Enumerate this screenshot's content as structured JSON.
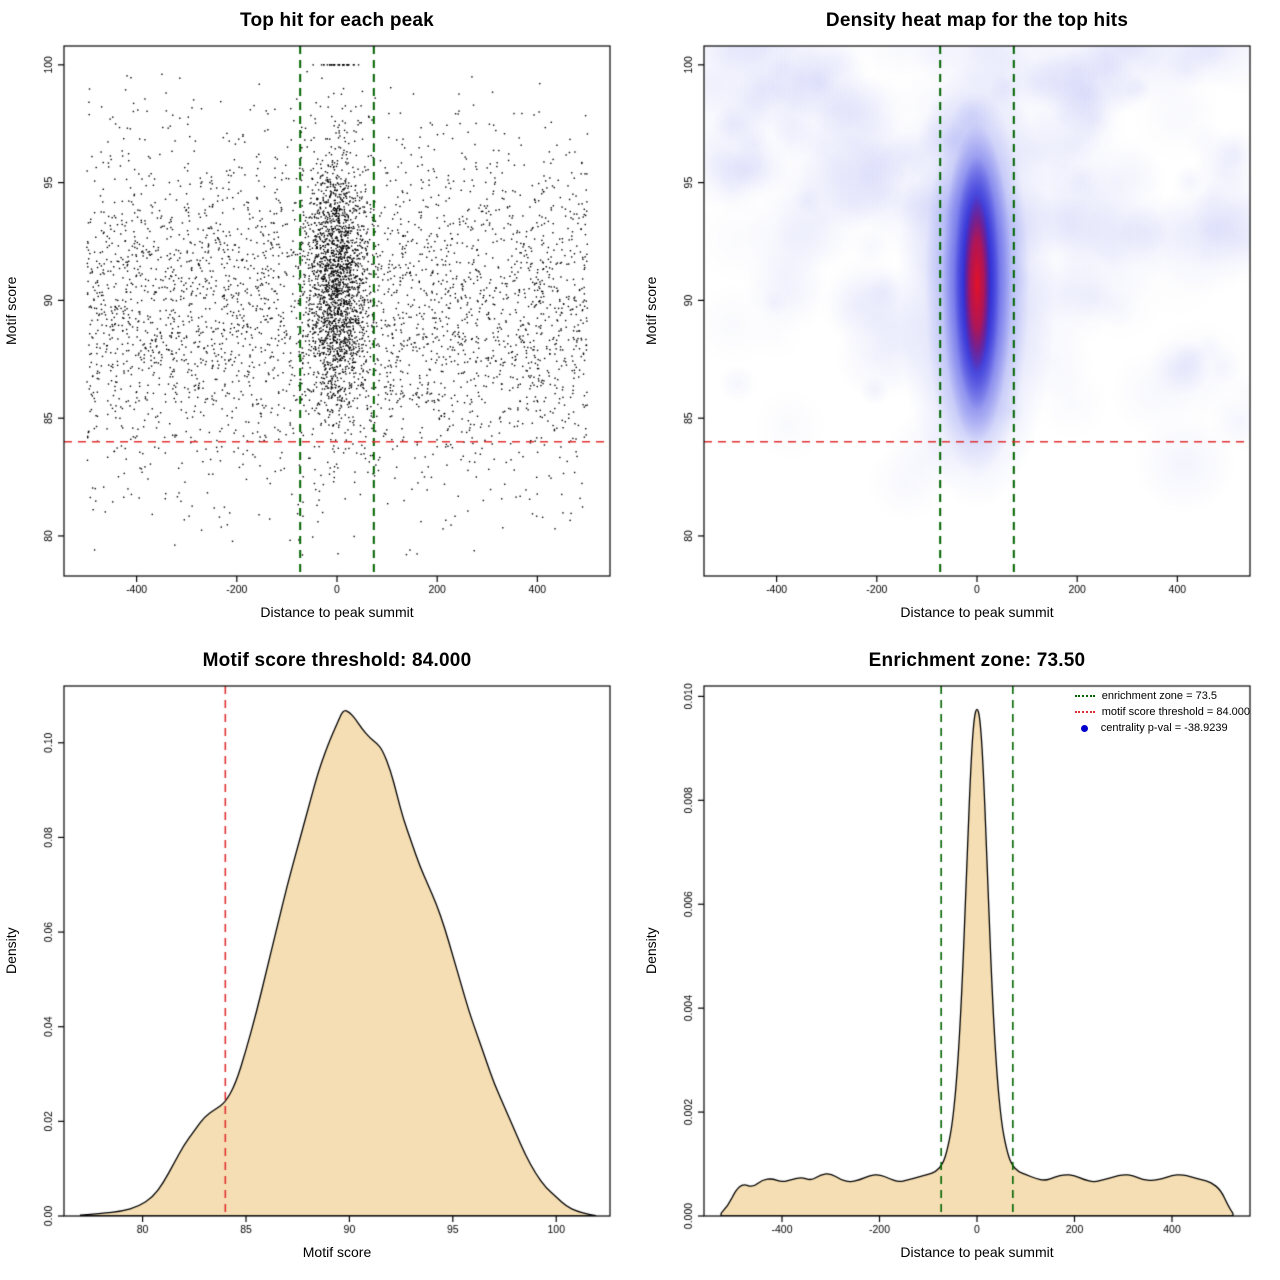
{
  "page": {
    "background": "#ffffff"
  },
  "chart_data": [
    {
      "type": "scatter",
      "title": "Top hit for each peak",
      "xlabel": "Distance to peak summit",
      "ylabel": "Motif score",
      "xlim": [
        -545,
        545
      ],
      "ylim": [
        78.3,
        100.8
      ],
      "xticks": {
        "values": [
          -400,
          -200,
          0,
          200,
          400
        ],
        "labels": [
          "-400",
          "-200",
          "0",
          "200",
          "400"
        ]
      },
      "yticks": {
        "values": [
          80,
          85,
          90,
          95,
          100
        ],
        "labels": [
          "80",
          "85",
          "90",
          "95",
          "100"
        ]
      },
      "points": {
        "seed": 42,
        "color": "#000000",
        "size": 1.4,
        "n_background": 3600,
        "background_x_range": [
          -500,
          500
        ],
        "background_y_mean": 89.7,
        "background_y_sd": 3.8,
        "n_cluster": 1800,
        "cluster_x_mean": 0,
        "cluster_x_sd": 30,
        "cluster_y_mean": 90.8,
        "cluster_y_sd": 2.8,
        "n_top": 30,
        "top_y": 100,
        "top_x_sd": 22,
        "y_min": 78.8,
        "y_max": 100
      },
      "vlines": [
        {
          "x": -73.5,
          "color": "#006400",
          "width": 2,
          "style": "dashed"
        },
        {
          "x": 73.5,
          "color": "#006400",
          "width": 2,
          "style": "dashed"
        }
      ],
      "hlines": [
        {
          "y": 84,
          "color": "#e03131",
          "width": 1.6,
          "style": "dashed"
        }
      ]
    },
    {
      "type": "heatmap",
      "title": "Density heat map for the top hits",
      "xlabel": "Distance to peak summit",
      "ylabel": "Motif score",
      "xlim": [
        -545,
        545
      ],
      "ylim": [
        78.3,
        100.8
      ],
      "xticks": {
        "values": [
          -400,
          -200,
          0,
          200,
          400
        ],
        "labels": [
          "-400",
          "-200",
          "0",
          "200",
          "400"
        ]
      },
      "yticks": {
        "values": [
          80,
          85,
          90,
          95,
          100
        ],
        "labels": [
          "80",
          "85",
          "90",
          "95",
          "100"
        ]
      },
      "noise": {
        "seed": 7,
        "count": 340,
        "r_min": 14,
        "r_max": 52,
        "rgb": "95,105,235",
        "alpha_min": 0.02,
        "alpha_max": 0.075,
        "y_low": 82,
        "y_span": 17
      },
      "hotspot": {
        "x": 0,
        "y": 90.7,
        "layers": [
          {
            "hw": 160,
            "hh": 9.5,
            "rgb": "135,145,240",
            "a": 0.34
          },
          {
            "hw": 105,
            "hh": 8.2,
            "rgb": "90,100,235",
            "a": 0.5
          },
          {
            "hw": 70,
            "hh": 6.8,
            "rgb": "45,45,220",
            "a": 0.8
          },
          {
            "hw": 46,
            "hh": 5.4,
            "rgb": "25,20,205",
            "a": 0.95
          },
          {
            "hw": 27,
            "hh": 3.8,
            "rgb": "228,18,40",
            "a": 1
          }
        ]
      },
      "vlines": [
        {
          "x": -73.5,
          "color": "#006400",
          "width": 2,
          "style": "dashed"
        },
        {
          "x": 73.5,
          "color": "#006400",
          "width": 2,
          "style": "dashed"
        }
      ],
      "hlines": [
        {
          "y": 84,
          "color": "#e03131",
          "width": 1.6,
          "style": "dashed"
        }
      ]
    },
    {
      "type": "area",
      "title": "Motif score threshold: 84.000",
      "xlabel": "Motif score",
      "ylabel": "Density",
      "xlim": [
        76.2,
        102.6
      ],
      "ylim": [
        0,
        0.112
      ],
      "xticks": {
        "values": [
          80,
          85,
          90,
          95,
          100
        ],
        "labels": [
          "80",
          "85",
          "90",
          "95",
          "100"
        ]
      },
      "yticks": {
        "values": [
          0,
          0.02,
          0.04,
          0.06,
          0.08,
          0.1
        ],
        "labels": [
          "0.00",
          "0.02",
          "0.04",
          "0.06",
          "0.08",
          "0.10"
        ]
      },
      "fill": "#F5DEB3",
      "stroke": "#000000",
      "x": [
        77,
        78,
        79,
        79.8,
        80.5,
        81,
        81.5,
        82,
        82.5,
        83,
        83.5,
        84,
        84.5,
        85,
        85.5,
        86,
        86.5,
        87,
        87.5,
        88,
        88.5,
        89,
        89.4,
        89.7,
        90,
        90.3,
        90.6,
        91,
        91.3,
        91.6,
        92,
        92.3,
        92.6,
        93,
        93.4,
        93.8,
        94.2,
        94.6,
        95,
        95.4,
        95.8,
        96.2,
        96.6,
        97,
        97.5,
        98,
        98.5,
        99,
        99.5,
        100,
        100.5,
        101,
        101.5,
        101.9
      ],
      "y": [
        0.0002,
        0.0005,
        0.001,
        0.002,
        0.004,
        0.007,
        0.011,
        0.015,
        0.018,
        0.021,
        0.0225,
        0.024,
        0.028,
        0.035,
        0.043,
        0.052,
        0.061,
        0.07,
        0.078,
        0.086,
        0.094,
        0.1,
        0.104,
        0.107,
        0.1065,
        0.105,
        0.103,
        0.101,
        0.1,
        0.0985,
        0.094,
        0.089,
        0.084,
        0.079,
        0.074,
        0.07,
        0.066,
        0.061,
        0.055,
        0.049,
        0.043,
        0.038,
        0.033,
        0.028,
        0.023,
        0.018,
        0.013,
        0.009,
        0.006,
        0.004,
        0.002,
        0.001,
        0.0004,
        0.0001
      ],
      "vlines": [
        {
          "x": 84,
          "color": "#e03131",
          "width": 1.6,
          "style": "dashed"
        }
      ],
      "hlines": []
    },
    {
      "type": "area",
      "title": "Enrichment zone: 73.50",
      "xlabel": "Distance to peak summit",
      "ylabel": "Density",
      "xlim": [
        -560,
        560
      ],
      "ylim": [
        0,
        0.0102
      ],
      "xticks": {
        "values": [
          -400,
          -200,
          0,
          200,
          400
        ],
        "labels": [
          "-400",
          "-200",
          "0",
          "200",
          "400"
        ]
      },
      "yticks": {
        "values": [
          0,
          0.002,
          0.004,
          0.006,
          0.008,
          0.01
        ],
        "labels": [
          "0.000",
          "0.002",
          "0.004",
          "0.006",
          "0.008",
          "0.010"
        ]
      },
      "fill": "#F5DEB3",
      "stroke": "#000000",
      "x": [
        -525,
        -510,
        -495,
        -480,
        -460,
        -440,
        -420,
        -400,
        -380,
        -360,
        -340,
        -320,
        -300,
        -280,
        -260,
        -240,
        -220,
        -200,
        -180,
        -160,
        -140,
        -120,
        -100,
        -85,
        -70,
        -60,
        -50,
        -40,
        -30,
        -20,
        -12,
        -6,
        0,
        6,
        12,
        20,
        30,
        40,
        50,
        60,
        70,
        85,
        100,
        120,
        140,
        160,
        180,
        200,
        220,
        240,
        260,
        280,
        300,
        320,
        340,
        360,
        380,
        400,
        420,
        440,
        460,
        480,
        500,
        515,
        525
      ],
      "y": [
        5e-05,
        0.0002,
        0.0005,
        0.00062,
        0.00055,
        0.0007,
        0.00072,
        0.00065,
        0.0007,
        0.00075,
        0.00068,
        0.0008,
        0.00082,
        0.0007,
        0.00065,
        0.0007,
        0.00078,
        0.0008,
        0.00072,
        0.00065,
        0.0007,
        0.00075,
        0.0008,
        0.00085,
        0.001,
        0.0013,
        0.0018,
        0.0028,
        0.0045,
        0.007,
        0.0088,
        0.0096,
        0.0098,
        0.0096,
        0.0088,
        0.007,
        0.0045,
        0.0028,
        0.0018,
        0.0013,
        0.001,
        0.00085,
        0.0008,
        0.00072,
        0.00068,
        0.00075,
        0.0008,
        0.00078,
        0.0007,
        0.00065,
        0.0007,
        0.00075,
        0.0008,
        0.00078,
        0.0007,
        0.00068,
        0.00072,
        0.00078,
        0.0008,
        0.00075,
        0.0007,
        0.00065,
        0.0005,
        0.0002,
        5e-05
      ],
      "vlines": [
        {
          "x": -73.5,
          "color": "#006400",
          "width": 1.6,
          "style": "dashed"
        },
        {
          "x": 73.5,
          "color": "#006400",
          "width": 1.6,
          "style": "dashed"
        }
      ],
      "hlines": [],
      "legend": [
        {
          "label": "enrichment zone = 73.5",
          "marker": "dotted-line",
          "color": "#006400"
        },
        {
          "label": "motif score threshold = 84.000",
          "marker": "dotted-line",
          "color": "#e03131"
        },
        {
          "label": "centrality p-val = -38.9239",
          "marker": "dot",
          "color": "#0000cd"
        }
      ]
    }
  ]
}
